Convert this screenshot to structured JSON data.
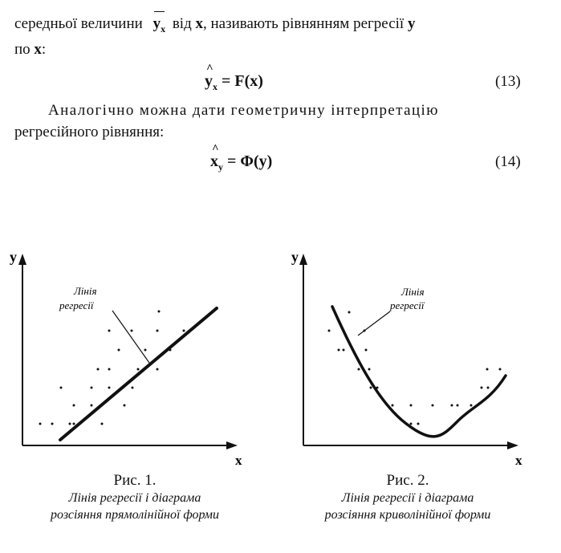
{
  "text": {
    "line1_a": "середньої величини",
    "line1_var": "y",
    "line1_sub": "x",
    "line1_b": "від",
    "line1_x": "x",
    "line1_c": ", називають рівнянням регресії",
    "line1_y": "y",
    "line2_a": "по",
    "line2_x": "x",
    "line2_colon": ":",
    "eq13_lhs": "y",
    "eq13_sub": "x",
    "eq13_rhs": "= F(x)",
    "eq13_num": "(13)",
    "para2_line1": "Аналогічно можна дати геометричну інтерпретацію",
    "para2_line2": "регресійного рівняння:",
    "eq14_lhs": "x",
    "eq14_sub": "y",
    "eq14_rhs": "= Φ(y)",
    "eq14_num": "(14)"
  },
  "figure1": {
    "axis_y": "y",
    "axis_x": "x",
    "label_line1": "Лінія",
    "label_line2": "регресії",
    "caption_title": "Рис. 1.",
    "caption_line1": "Лінія регресії і діаграма",
    "caption_line2": "розсіяння прямолінійної форми"
  },
  "figure2": {
    "axis_y": "y",
    "axis_x": "x",
    "label_line1": "Лінія",
    "label_line2": "регресії",
    "caption_title": "Рис. 2.",
    "caption_line1": "Лінія регресії і діаграма",
    "caption_line2": "розсіяння криволінійної форми"
  }
}
